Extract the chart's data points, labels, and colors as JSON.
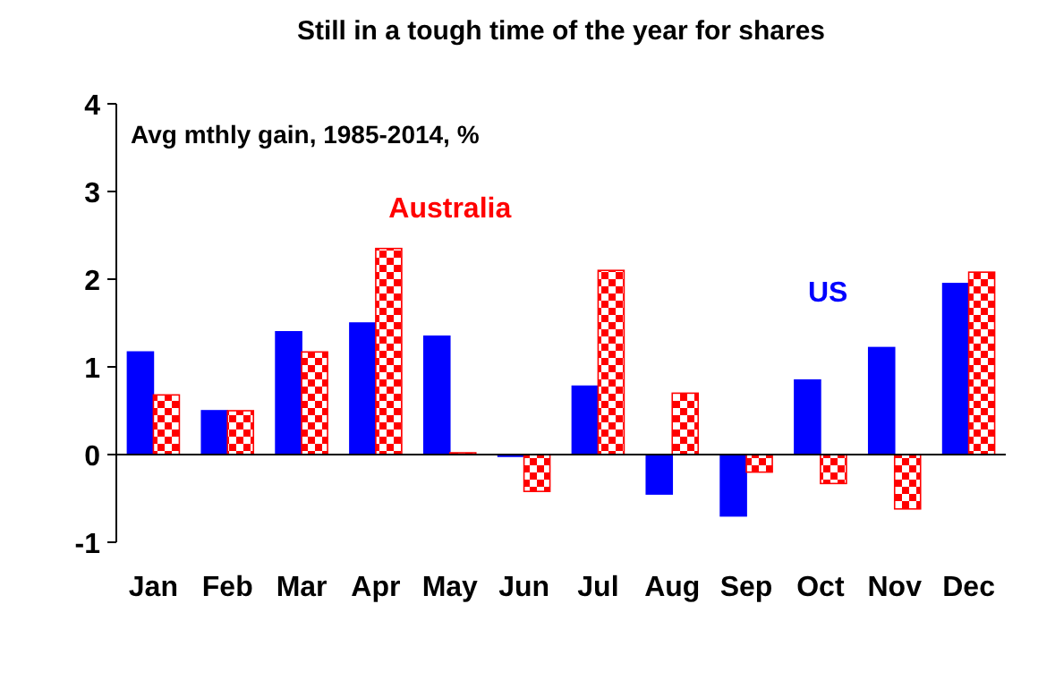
{
  "chart_data": {
    "type": "bar",
    "title": "Still in a tough time of the year for shares",
    "subtitle": "Avg mthly gain, 1985-2014, %",
    "categories": [
      "Jan",
      "Feb",
      "Mar",
      "Apr",
      "May",
      "Jun",
      "Jul",
      "Aug",
      "Sep",
      "Oct",
      "Nov",
      "Dec"
    ],
    "series": [
      {
        "name": "US",
        "color": "#0000ff",
        "values": [
          1.17,
          0.5,
          1.4,
          1.5,
          1.35,
          -0.02,
          0.78,
          -0.45,
          -0.7,
          0.85,
          1.22,
          1.95
        ]
      },
      {
        "name": "Australia",
        "color": "#ff0000",
        "values": [
          0.68,
          0.5,
          1.17,
          2.35,
          0.02,
          -0.42,
          2.1,
          0.7,
          -0.2,
          -0.33,
          -0.62,
          2.08
        ]
      }
    ],
    "ylim": [
      -1,
      4
    ],
    "yticks": [
      -1,
      0,
      1,
      2,
      3,
      4
    ],
    "legend": false
  }
}
